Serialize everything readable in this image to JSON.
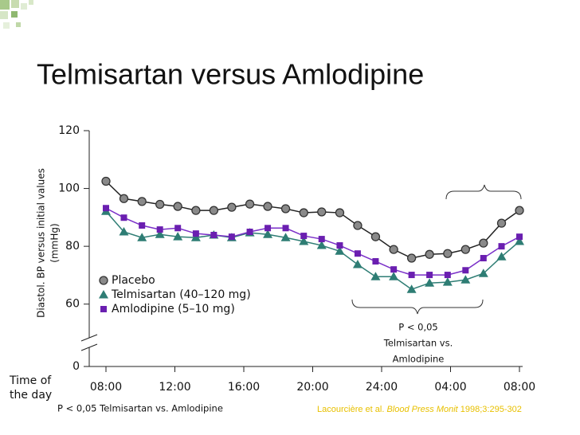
{
  "chart_data": {
    "type": "line",
    "title": "Telmisartan versus Amlodipine",
    "ylabel": [
      "Diastol. BP versus initial values",
      "(mmHg)"
    ],
    "xlabel": [
      "Time of",
      "the day"
    ],
    "x": [
      0,
      1.04,
      2.09,
      3.13,
      4.17,
      5.22,
      6.26,
      7.3,
      8.35,
      9.39,
      10.43,
      11.48,
      12.52,
      13.57,
      14.61,
      15.65,
      16.7,
      17.74,
      18.78,
      19.83,
      20.87,
      21.91,
      22.96,
      24
    ],
    "series": [
      {
        "name": "Placebo",
        "color": "#8a8a8a",
        "line_color": "#222222",
        "marker": "circle",
        "values": [
          102.5,
          96.5,
          95.5,
          94.5,
          93.8,
          92.4,
          92.4,
          93.5,
          94.6,
          93.8,
          93,
          91.6,
          91.9,
          91.6,
          87.2,
          83.3,
          78.9,
          75.9,
          77.2,
          77.5,
          78.9,
          81.1,
          88,
          92.4
        ]
      },
      {
        "name": "Telmisartan (40–120 mg)",
        "color": "#2e7d74",
        "line_color": "#2e7d74",
        "marker": "triangle",
        "values": [
          92.1,
          85,
          83,
          84.1,
          83.3,
          83,
          83.9,
          83,
          84.7,
          84.1,
          83,
          81.7,
          80.3,
          78.3,
          73.7,
          69.5,
          69.5,
          65.1,
          67.3,
          67.6,
          68.4,
          70.6,
          76.4,
          81.7
        ]
      },
      {
        "name": "Amlodipine (5–10 mg)",
        "color": "#6a1fb0",
        "line_color": "#7a2fc8",
        "marker": "square",
        "values": [
          93.2,
          89.9,
          87.2,
          85.8,
          86.3,
          84.4,
          83.9,
          83.3,
          85,
          86.3,
          86.3,
          83.6,
          82.5,
          80.3,
          77.5,
          74.8,
          72,
          70.1,
          70.1,
          70.1,
          71.7,
          75.9,
          80,
          83.3
        ]
      }
    ],
    "xlim": [
      0,
      24
    ],
    "xticks": [
      {
        "value": 0,
        "label": "08:00"
      },
      {
        "value": 4,
        "label": "12:00"
      },
      {
        "value": 8,
        "label": "16:00"
      },
      {
        "value": 12,
        "label": "20:00"
      },
      {
        "value": 16,
        "label": "24:00"
      },
      {
        "value": 20,
        "label": "04:00"
      },
      {
        "value": 24,
        "label": "08:00"
      }
    ],
    "ylim": [
      50,
      120
    ],
    "yticks": [
      0,
      60,
      80,
      100,
      120
    ],
    "axis_break": true,
    "legend": "lower left",
    "annotation": [
      "P < 0,05",
      "Telmisartan vs.",
      "Amlodipine"
    ],
    "footnote": "P < 0,05 Telmisartan vs. Amlodipine",
    "source": {
      "authors": "Lacourcière et al.",
      "journal": "Blood Press Monit",
      "ref": "1998;3:295-302"
    }
  }
}
